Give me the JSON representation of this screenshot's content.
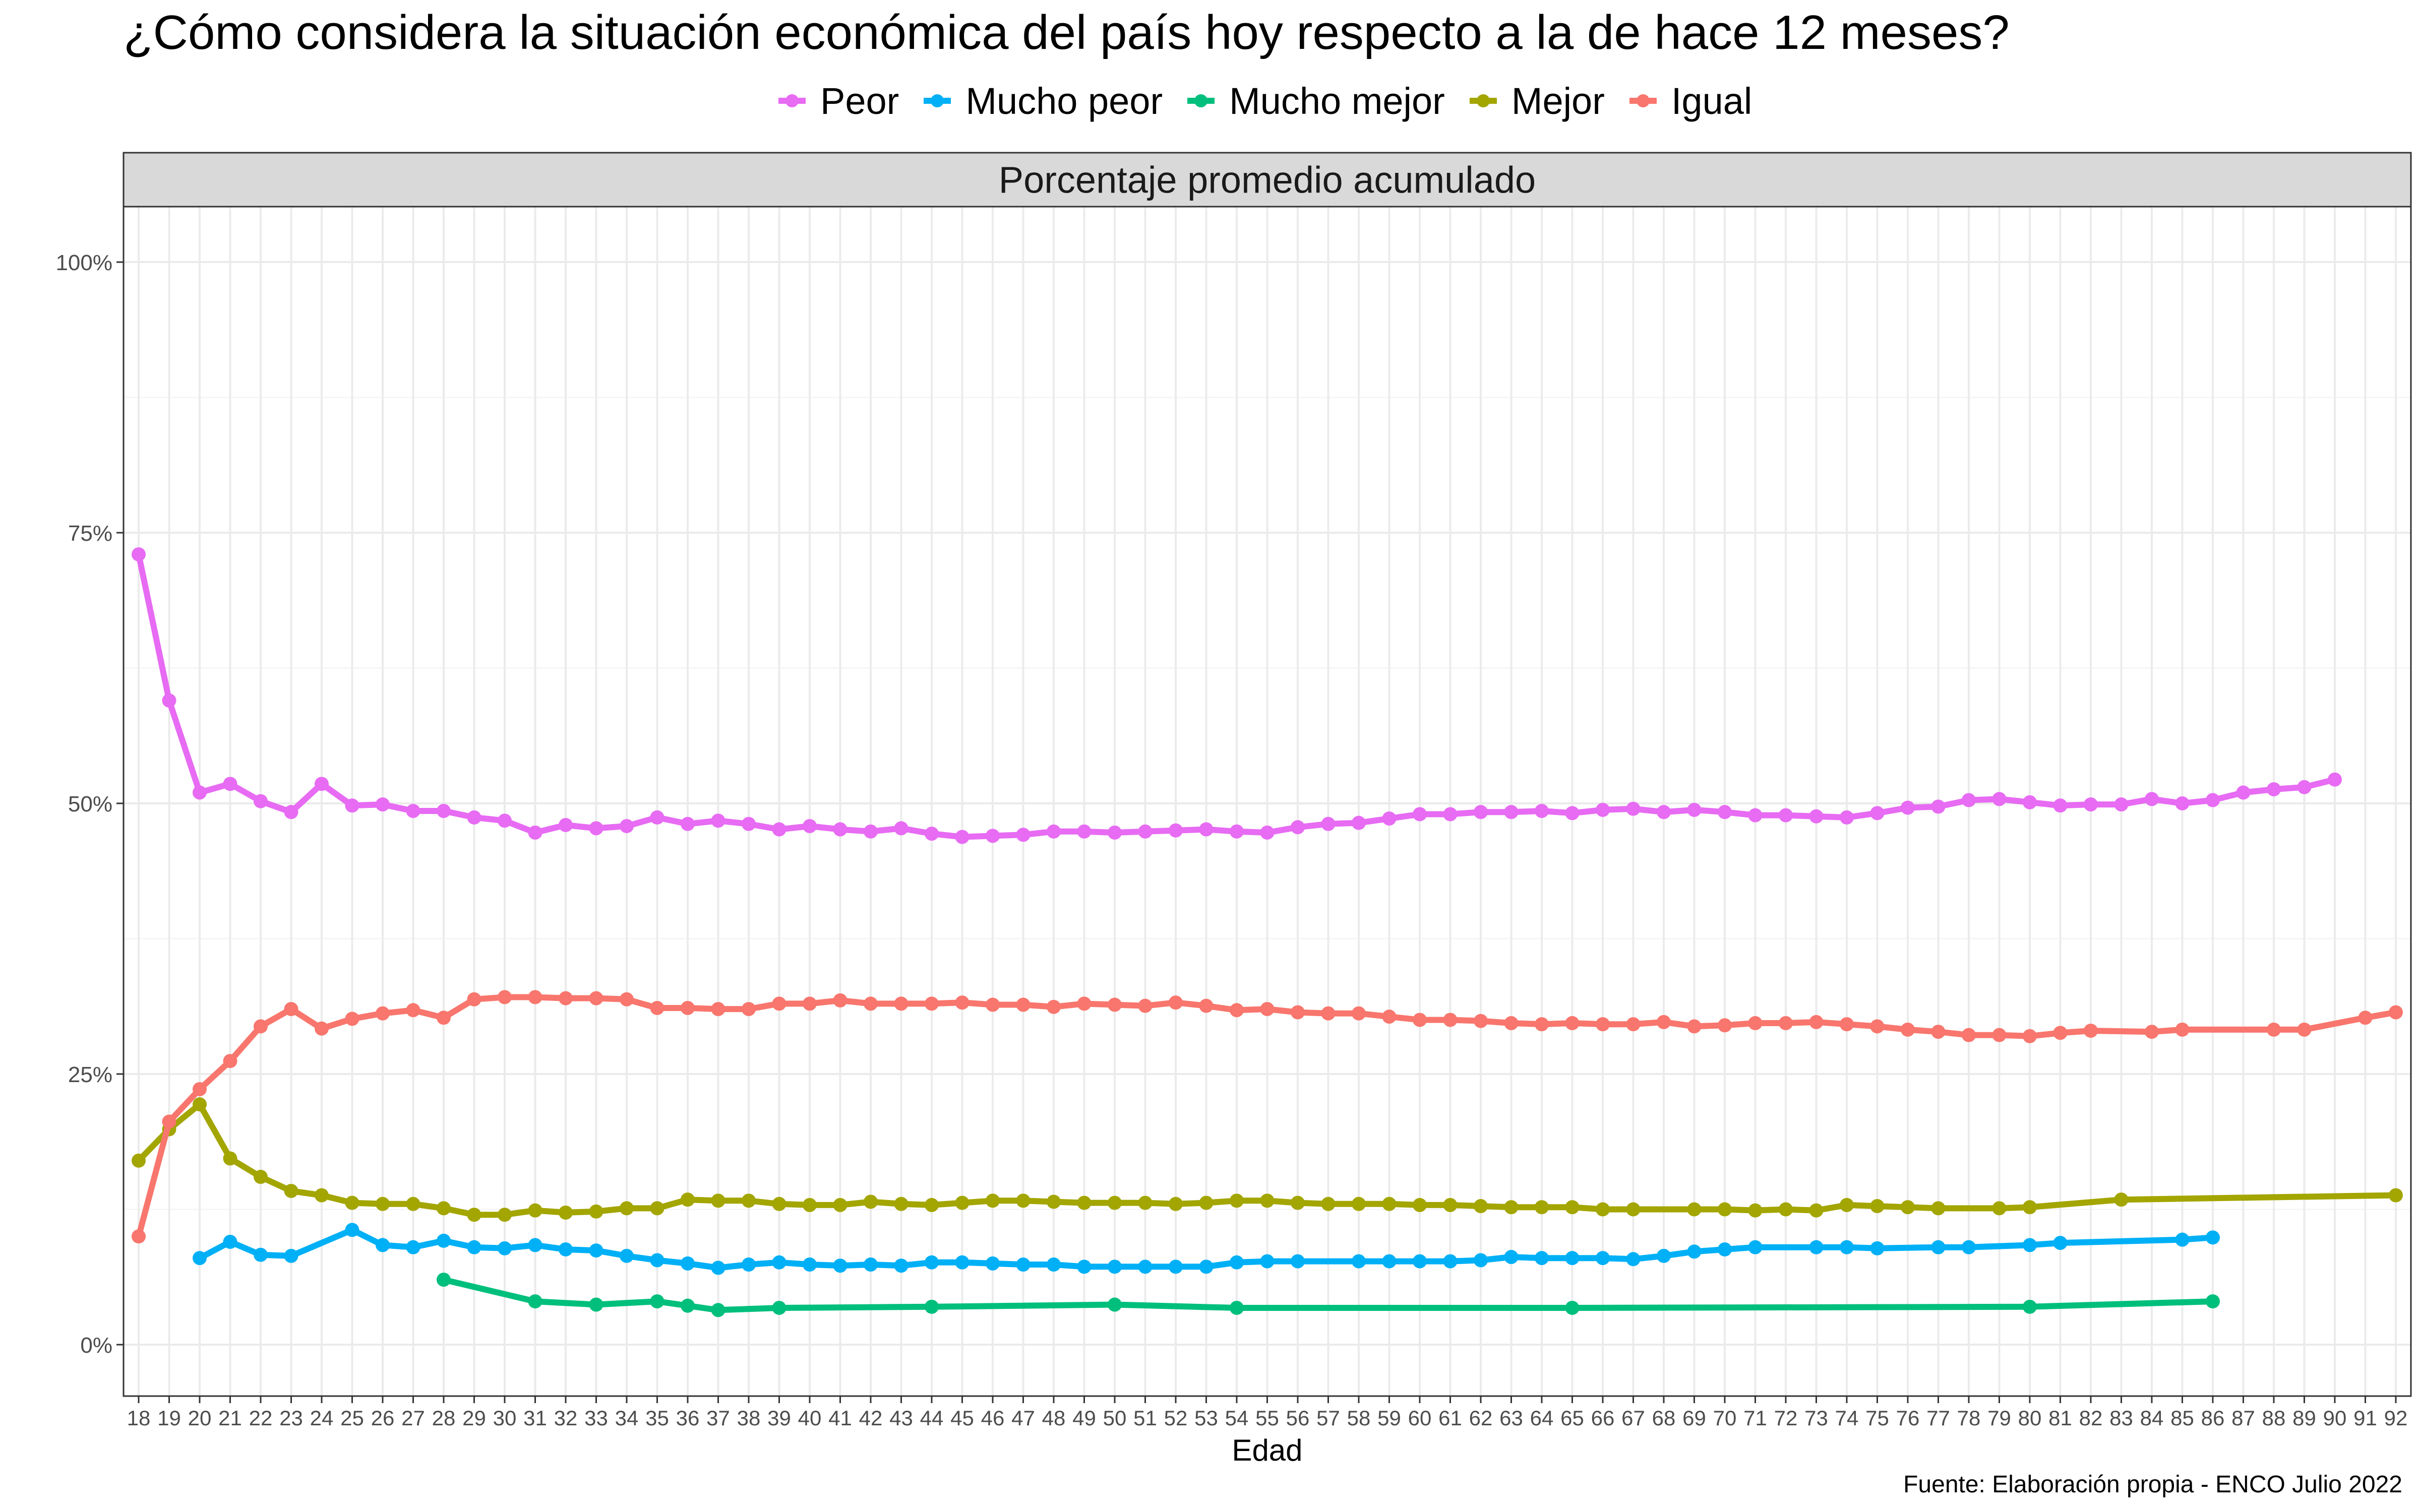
{
  "chart_data": {
    "type": "line",
    "title": "¿Cómo considera la situación económica del país hoy respecto a la de hace 12 meses?",
    "facet_label": "Porcentaje promedio acumulado",
    "xlabel": "Edad",
    "ylabel": "",
    "caption": "Fuente: Elaboración propia - ENCO Julio 2022",
    "xlim": [
      18,
      92
    ],
    "ylim": [
      0,
      1
    ],
    "yticks": [
      0,
      0.25,
      0.5,
      0.75,
      1.0
    ],
    "ytick_labels": [
      "0%",
      "25%",
      "50%",
      "75%",
      "100%"
    ],
    "xticks": [
      18,
      19,
      20,
      21,
      22,
      23,
      24,
      25,
      26,
      27,
      28,
      29,
      30,
      31,
      32,
      33,
      34,
      35,
      36,
      37,
      38,
      39,
      40,
      41,
      42,
      43,
      44,
      45,
      46,
      47,
      48,
      49,
      50,
      51,
      52,
      53,
      54,
      55,
      56,
      57,
      58,
      59,
      60,
      61,
      62,
      63,
      64,
      65,
      66,
      67,
      68,
      69,
      70,
      71,
      72,
      73,
      74,
      75,
      76,
      77,
      78,
      79,
      80,
      81,
      82,
      83,
      84,
      85,
      86,
      87,
      88,
      89,
      90,
      91,
      92
    ],
    "grid": true,
    "legend_position": "top",
    "series": [
      {
        "name": "Peor",
        "color": "#E76BF3",
        "x": [
          18,
          19,
          20,
          21,
          22,
          23,
          24,
          25,
          26,
          27,
          28,
          29,
          30,
          31,
          32,
          33,
          34,
          35,
          36,
          37,
          38,
          39,
          40,
          41,
          42,
          43,
          44,
          45,
          46,
          47,
          48,
          49,
          50,
          51,
          52,
          53,
          54,
          55,
          56,
          57,
          58,
          59,
          60,
          61,
          62,
          63,
          64,
          65,
          66,
          67,
          68,
          69,
          70,
          71,
          72,
          73,
          74,
          75,
          76,
          77,
          78,
          79,
          80,
          81,
          82,
          83,
          84,
          85,
          86,
          87,
          88,
          89,
          90
        ],
        "values": [
          0.73,
          0.595,
          0.51,
          0.518,
          0.502,
          0.492,
          0.518,
          0.498,
          0.499,
          0.493,
          0.493,
          0.487,
          0.484,
          0.473,
          0.48,
          0.477,
          0.479,
          0.487,
          0.481,
          0.484,
          0.481,
          0.476,
          0.479,
          0.476,
          0.474,
          0.477,
          0.472,
          0.469,
          0.47,
          0.471,
          0.474,
          0.474,
          0.473,
          0.474,
          0.475,
          0.476,
          0.474,
          0.473,
          0.478,
          0.481,
          0.482,
          0.486,
          0.49,
          0.49,
          0.492,
          0.492,
          0.493,
          0.491,
          0.494,
          0.495,
          0.492,
          0.494,
          0.492,
          0.489,
          0.489,
          0.488,
          0.487,
          0.491,
          0.496,
          0.497,
          0.503,
          0.504,
          0.501,
          0.498,
          0.499,
          0.499,
          0.504,
          0.5,
          0.503,
          0.51,
          0.513,
          0.515,
          0.522
        ]
      },
      {
        "name": "Mucho peor",
        "color": "#00B0F6",
        "x": [
          20,
          21,
          22,
          23,
          25,
          26,
          27,
          28,
          29,
          30,
          31,
          32,
          33,
          34,
          35,
          36,
          37,
          38,
          39,
          40,
          41,
          42,
          43,
          44,
          45,
          46,
          47,
          48,
          49,
          50,
          51,
          52,
          53,
          54,
          55,
          56,
          58,
          59,
          60,
          61,
          62,
          63,
          64,
          65,
          66,
          67,
          68,
          69,
          70,
          71,
          73,
          74,
          75,
          77,
          78,
          80,
          81,
          85,
          86
        ],
        "values": [
          0.08,
          0.095,
          0.083,
          0.082,
          0.106,
          0.092,
          0.09,
          0.096,
          0.09,
          0.089,
          0.092,
          0.088,
          0.087,
          0.082,
          0.078,
          0.075,
          0.071,
          0.074,
          0.076,
          0.074,
          0.073,
          0.074,
          0.073,
          0.076,
          0.076,
          0.075,
          0.074,
          0.074,
          0.072,
          0.072,
          0.072,
          0.072,
          0.072,
          0.076,
          0.077,
          0.077,
          0.077,
          0.077,
          0.077,
          0.077,
          0.078,
          0.081,
          0.08,
          0.08,
          0.08,
          0.079,
          0.082,
          0.086,
          0.088,
          0.09,
          0.09,
          0.09,
          0.089,
          0.09,
          0.09,
          0.092,
          0.094,
          0.097,
          0.099
        ]
      },
      {
        "name": "Mucho mejor",
        "color": "#00BF7D",
        "x": [
          28,
          31,
          33,
          35,
          36,
          37,
          39,
          44,
          50,
          54,
          65,
          80,
          86
        ],
        "values": [
          0.06,
          0.04,
          0.037,
          0.04,
          0.036,
          0.032,
          0.034,
          0.035,
          0.037,
          0.034,
          0.034,
          0.035,
          0.04
        ]
      },
      {
        "name": "Mejor",
        "color": "#A3A500",
        "x": [
          18,
          19,
          20,
          21,
          22,
          23,
          24,
          25,
          26,
          27,
          28,
          29,
          30,
          31,
          32,
          33,
          34,
          35,
          36,
          37,
          38,
          39,
          40,
          41,
          42,
          43,
          44,
          45,
          46,
          47,
          48,
          49,
          50,
          51,
          52,
          53,
          54,
          55,
          56,
          57,
          58,
          59,
          60,
          61,
          62,
          63,
          64,
          65,
          66,
          67,
          69,
          70,
          71,
          72,
          73,
          74,
          75,
          76,
          77,
          79,
          80,
          83,
          92
        ],
        "values": [
          0.17,
          0.199,
          0.222,
          0.172,
          0.155,
          0.142,
          0.138,
          0.131,
          0.13,
          0.13,
          0.126,
          0.12,
          0.12,
          0.124,
          0.122,
          0.123,
          0.126,
          0.126,
          0.134,
          0.133,
          0.133,
          0.13,
          0.129,
          0.129,
          0.132,
          0.13,
          0.129,
          0.131,
          0.133,
          0.133,
          0.132,
          0.131,
          0.131,
          0.131,
          0.13,
          0.131,
          0.133,
          0.133,
          0.131,
          0.13,
          0.13,
          0.13,
          0.129,
          0.129,
          0.128,
          0.127,
          0.127,
          0.127,
          0.125,
          0.125,
          0.125,
          0.125,
          0.124,
          0.125,
          0.124,
          0.129,
          0.128,
          0.127,
          0.126,
          0.126,
          0.127,
          0.134,
          0.138
        ]
      },
      {
        "name": "Igual",
        "color": "#F8766D",
        "x": [
          18,
          19,
          20,
          21,
          22,
          23,
          24,
          25,
          26,
          27,
          28,
          29,
          30,
          31,
          32,
          33,
          34,
          35,
          36,
          37,
          38,
          39,
          40,
          41,
          42,
          43,
          44,
          45,
          46,
          47,
          48,
          49,
          50,
          51,
          52,
          53,
          54,
          55,
          56,
          57,
          58,
          59,
          60,
          61,
          62,
          63,
          64,
          65,
          66,
          67,
          68,
          69,
          70,
          71,
          72,
          73,
          74,
          75,
          76,
          77,
          78,
          79,
          80,
          81,
          82,
          84,
          85,
          88,
          89,
          91,
          92
        ],
        "values": [
          0.1,
          0.206,
          0.236,
          0.262,
          0.294,
          0.31,
          0.292,
          0.301,
          0.306,
          0.309,
          0.302,
          0.319,
          0.321,
          0.321,
          0.32,
          0.32,
          0.319,
          0.311,
          0.311,
          0.31,
          0.31,
          0.315,
          0.315,
          0.318,
          0.315,
          0.315,
          0.315,
          0.316,
          0.314,
          0.314,
          0.312,
          0.315,
          0.314,
          0.313,
          0.316,
          0.313,
          0.309,
          0.31,
          0.307,
          0.306,
          0.306,
          0.303,
          0.3,
          0.3,
          0.299,
          0.297,
          0.296,
          0.297,
          0.296,
          0.296,
          0.298,
          0.294,
          0.295,
          0.297,
          0.297,
          0.298,
          0.296,
          0.294,
          0.291,
          0.289,
          0.286,
          0.286,
          0.285,
          0.288,
          0.29,
          0.289,
          0.291,
          0.291,
          0.291,
          0.302,
          0.307
        ]
      }
    ]
  }
}
